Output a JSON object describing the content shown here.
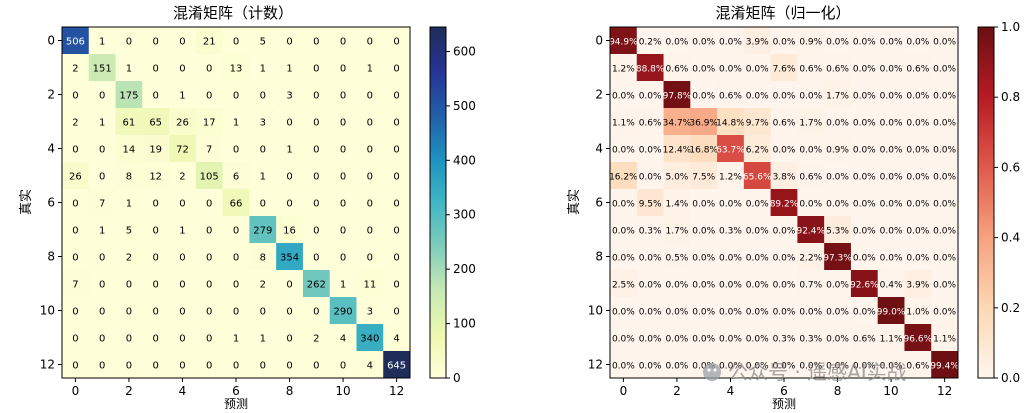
{
  "chart_data": [
    {
      "type": "heatmap",
      "title": "混淆矩阵（计数）",
      "xlabel": "预测",
      "ylabel": "真实",
      "x_ticks": [
        0,
        2,
        4,
        6,
        8,
        10,
        12
      ],
      "y_ticks": [
        0,
        2,
        4,
        6,
        8,
        10,
        12
      ],
      "colorbar_ticks": [
        0,
        100,
        200,
        300,
        400,
        500,
        600
      ],
      "vmin": 0,
      "vmax": 645,
      "colormap": "YlGnBu",
      "values": [
        [
          506,
          1,
          0,
          0,
          0,
          21,
          0,
          5,
          0,
          0,
          0,
          0,
          0
        ],
        [
          2,
          151,
          1,
          0,
          0,
          0,
          13,
          1,
          1,
          0,
          0,
          1,
          0
        ],
        [
          0,
          0,
          175,
          0,
          1,
          0,
          0,
          0,
          3,
          0,
          0,
          0,
          0
        ],
        [
          2,
          1,
          61,
          65,
          26,
          17,
          1,
          3,
          0,
          0,
          0,
          0,
          0
        ],
        [
          0,
          0,
          14,
          19,
          72,
          7,
          0,
          0,
          1,
          0,
          0,
          0,
          0
        ],
        [
          26,
          0,
          8,
          12,
          2,
          105,
          6,
          1,
          0,
          0,
          0,
          0,
          0
        ],
        [
          0,
          7,
          1,
          0,
          0,
          0,
          66,
          0,
          0,
          0,
          0,
          0,
          0
        ],
        [
          0,
          1,
          5,
          0,
          1,
          0,
          0,
          279,
          16,
          0,
          0,
          0,
          0
        ],
        [
          0,
          0,
          2,
          0,
          0,
          0,
          0,
          8,
          354,
          0,
          0,
          0,
          0
        ],
        [
          7,
          0,
          0,
          0,
          0,
          0,
          0,
          2,
          0,
          262,
          1,
          11,
          0
        ],
        [
          0,
          0,
          0,
          0,
          0,
          0,
          0,
          0,
          0,
          0,
          290,
          3,
          0
        ],
        [
          0,
          0,
          0,
          0,
          0,
          0,
          1,
          1,
          0,
          2,
          4,
          340,
          4
        ],
        [
          0,
          0,
          0,
          0,
          0,
          0,
          0,
          0,
          0,
          0,
          0,
          4,
          645
        ]
      ]
    },
    {
      "type": "heatmap",
      "title": "混淆矩阵（归一化）",
      "xlabel": "预测",
      "ylabel": "真实",
      "x_ticks": [
        0,
        2,
        4,
        6,
        8,
        10,
        12
      ],
      "y_ticks": [
        0,
        2,
        4,
        6,
        8,
        10,
        12
      ],
      "colorbar_ticks": [
        "0.0",
        "0.2",
        "0.4",
        "0.6",
        "0.8",
        "1.0"
      ],
      "vmin": 0,
      "vmax": 1,
      "colormap": "OrRd-dark",
      "values_percent": [
        [
          94.9,
          0.2,
          0.0,
          0.0,
          0.0,
          3.9,
          0.0,
          0.9,
          0.0,
          0.0,
          0.0,
          0.0,
          0.0
        ],
        [
          1.2,
          88.8,
          0.6,
          0.0,
          0.0,
          0.0,
          7.6,
          0.6,
          0.6,
          0.0,
          0.0,
          0.6,
          0.0
        ],
        [
          0.0,
          0.0,
          97.8,
          0.0,
          0.6,
          0.0,
          0.0,
          0.0,
          1.7,
          0.0,
          0.0,
          0.0,
          0.0
        ],
        [
          1.1,
          0.6,
          34.7,
          36.9,
          14.8,
          9.7,
          0.6,
          1.7,
          0.0,
          0.0,
          0.0,
          0.0,
          0.0
        ],
        [
          0.0,
          0.0,
          12.4,
          16.8,
          63.7,
          6.2,
          0.0,
          0.0,
          0.9,
          0.0,
          0.0,
          0.0,
          0.0
        ],
        [
          16.2,
          0.0,
          5.0,
          7.5,
          1.2,
          65.6,
          3.8,
          0.6,
          0.0,
          0.0,
          0.0,
          0.0,
          0.0
        ],
        [
          0.0,
          9.5,
          1.4,
          0.0,
          0.0,
          0.0,
          89.2,
          0.0,
          0.0,
          0.0,
          0.0,
          0.0,
          0.0
        ],
        [
          0.0,
          0.3,
          1.7,
          0.0,
          0.3,
          0.0,
          0.0,
          92.4,
          5.3,
          0.0,
          0.0,
          0.0,
          0.0
        ],
        [
          0.0,
          0.0,
          0.5,
          0.0,
          0.0,
          0.0,
          0.0,
          2.2,
          97.3,
          0.0,
          0.0,
          0.0,
          0.0
        ],
        [
          2.5,
          0.0,
          0.0,
          0.0,
          0.0,
          0.0,
          0.0,
          0.7,
          0.0,
          92.6,
          0.4,
          3.9,
          0.0
        ],
        [
          0.0,
          0.0,
          0.0,
          0.0,
          0.0,
          0.0,
          0.0,
          0.0,
          0.0,
          0.0,
          99.0,
          1.0,
          0.0
        ],
        [
          0.0,
          0.0,
          0.0,
          0.0,
          0.0,
          0.0,
          0.3,
          0.3,
          0.0,
          0.6,
          1.1,
          96.6,
          1.1
        ],
        [
          0.0,
          0.0,
          0.0,
          0.0,
          0.0,
          0.0,
          0.0,
          0.0,
          0.0,
          0.0,
          0.0,
          0.6,
          99.4
        ]
      ]
    }
  ],
  "watermark": {
    "text": "公众号 · 遥感AI实战"
  }
}
